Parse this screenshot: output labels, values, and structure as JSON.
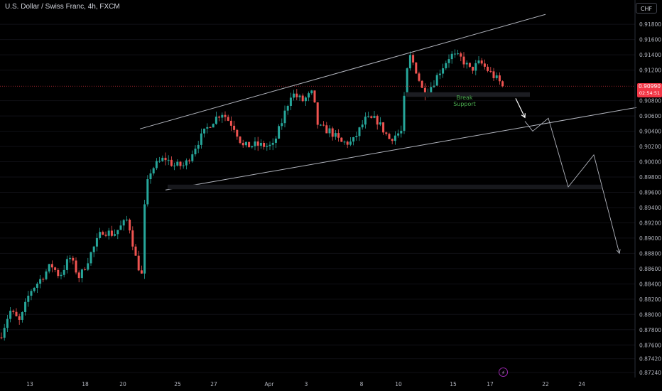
{
  "header": {
    "title": "U.S. Dollar / Swiss Franc, 4h, FXCM",
    "currency": "CHF"
  },
  "price_tag": {
    "price": "0.90990",
    "countdown": "02:54:51"
  },
  "annotation": {
    "line1": "Break",
    "line2": "Support"
  },
  "colors": {
    "background": "#000000",
    "up": "#26a69a",
    "down": "#ef5350",
    "line": "#b2b5be",
    "label": "#4caf50",
    "price_tag": "#f23645"
  },
  "icons": {
    "replay": "lightning-icon"
  },
  "chart_data": {
    "type": "candlestick",
    "title": "U.S. Dollar / Swiss Franc, 4h, FXCM",
    "interval": "4h",
    "y_axis": {
      "position": "right",
      "ylim": [
        0.8723,
        0.9196
      ],
      "ticks": [
        "0.91800",
        "0.91600",
        "0.91400",
        "0.91200",
        "0.90800",
        "0.90600",
        "0.90400",
        "0.90200",
        "0.90000",
        "0.89800",
        "0.89600",
        "0.89400",
        "0.89200",
        "0.89000",
        "0.88800",
        "0.88600",
        "0.88400",
        "0.88200",
        "0.88000",
        "0.87800",
        "0.87600",
        "0.87420",
        "0.87240"
      ]
    },
    "x_axis": {
      "ticks": [
        "13",
        "18",
        "20",
        "25",
        "27",
        "Apr",
        "3",
        "8",
        "10",
        "15",
        "17",
        "22",
        "24"
      ]
    },
    "last_price": 0.9099,
    "pivots": [
      [
        0,
        0.877
      ],
      [
        14,
        0.8805
      ],
      [
        28,
        0.879
      ],
      [
        42,
        0.883
      ],
      [
        56,
        0.8845
      ],
      [
        72,
        0.8865
      ],
      [
        84,
        0.885
      ],
      [
        98,
        0.8875
      ],
      [
        112,
        0.8848
      ],
      [
        128,
        0.888
      ],
      [
        144,
        0.891
      ],
      [
        160,
        0.8905
      ],
      [
        180,
        0.8925
      ],
      [
        192,
        0.887
      ],
      [
        200,
        0.885
      ],
      [
        204,
        0.895
      ],
      [
        210,
        0.8985
      ],
      [
        218,
        0.8995
      ],
      [
        232,
        0.9005
      ],
      [
        245,
        0.8995
      ],
      [
        260,
        0.8995
      ],
      [
        278,
        0.9025
      ],
      [
        296,
        0.905
      ],
      [
        312,
        0.9065
      ],
      [
        330,
        0.9045
      ],
      [
        342,
        0.902
      ],
      [
        360,
        0.9022
      ],
      [
        384,
        0.902
      ],
      [
        396,
        0.905
      ],
      [
        410,
        0.909
      ],
      [
        426,
        0.908
      ],
      [
        440,
        0.909
      ],
      [
        448,
        0.9045
      ],
      [
        465,
        0.904
      ],
      [
        480,
        0.9025
      ],
      [
        496,
        0.9025
      ],
      [
        514,
        0.9055
      ],
      [
        530,
        0.9055
      ],
      [
        548,
        0.903
      ],
      [
        566,
        0.904
      ],
      [
        570,
        0.9095
      ],
      [
        576,
        0.914
      ],
      [
        584,
        0.9125
      ],
      [
        596,
        0.909
      ],
      [
        608,
        0.91
      ],
      [
        620,
        0.912
      ],
      [
        634,
        0.914
      ],
      [
        650,
        0.9135
      ],
      [
        662,
        0.912
      ],
      [
        676,
        0.913
      ],
      [
        692,
        0.9115
      ],
      [
        708,
        0.91
      ]
    ],
    "channel": {
      "upper": [
        [
          197,
          0.9043
        ],
        [
          768,
          0.9193
        ]
      ],
      "lower": [
        [
          233,
          0.8963
        ],
        [
          896,
          0.9071
        ]
      ]
    },
    "zones": [
      {
        "from": [
          572,
          0.9091
        ],
        "to": [
          746,
          0.9085
        ]
      },
      {
        "from": [
          236,
          0.897
        ],
        "to": [
          848,
          0.8964
        ]
      }
    ],
    "projection": [
      [
        739,
        0.9053
      ],
      [
        750,
        0.904
      ],
      [
        772,
        0.9057
      ],
      [
        800,
        0.8967
      ],
      [
        836,
        0.9009
      ],
      [
        872,
        0.888
      ]
    ],
    "break_arrow": [
      [
        726,
        0.9083
      ],
      [
        739,
        0.9058
      ]
    ]
  }
}
